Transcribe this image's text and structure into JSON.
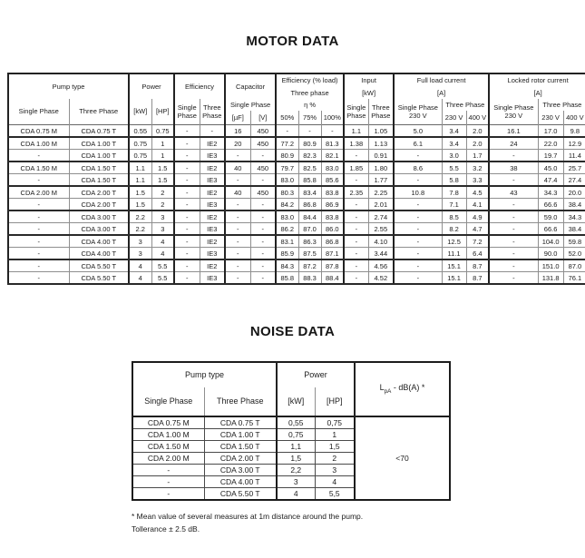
{
  "page": {
    "motor_title": "MOTOR DATA",
    "noise_title": "NOISE DATA",
    "footnote_line1": "* Mean value of several measures at 1m distance around the pump.",
    "footnote_line2": "Tollerance  ± 2.5 dB."
  },
  "motor_table": {
    "header": {
      "pump_type": "Pump type",
      "single_phase": "Single Phase",
      "three_phase": "Three Phase",
      "power": "Power",
      "kw": "[kW]",
      "hp": "[HP]",
      "efficiency": "Efficiency",
      "capacitor": "Capacitor",
      "uf": "[µF]",
      "v": "[V]",
      "eff_load": "Efficiency (% load)",
      "three_phase_lc": "Three phase",
      "eta": "η %",
      "p50": "50%",
      "p75": "75%",
      "p100": "100%",
      "input": "Input",
      "full_load": "Full load current",
      "locked_rotor": "Locked rotor current",
      "amps": "[A]",
      "single_230": "Single Phase 230 V",
      "v230": "230 V",
      "v400": "400 V"
    },
    "rows": [
      [
        "CDA 0.75 M",
        "CDA 0.75 T",
        "0.55",
        "0.75",
        "-",
        "-",
        "16",
        "450",
        "-",
        "-",
        "-",
        "1.1",
        "1.05",
        "5.0",
        "3.4",
        "2.0",
        "16.1",
        "17.0",
        "9.8"
      ],
      [
        "CDA 1.00 M",
        "CDA 1.00 T",
        "0.75",
        "1",
        "-",
        "IE2",
        "20",
        "450",
        "77.2",
        "80.9",
        "81.3",
        "1.38",
        "1.13",
        "6.1",
        "3.4",
        "2.0",
        "24",
        "22.0",
        "12.9"
      ],
      [
        "-",
        "CDA 1.00 T",
        "0.75",
        "1",
        "-",
        "IE3",
        "-",
        "-",
        "80.9",
        "82.3",
        "82.1",
        "-",
        "0.91",
        "-",
        "3.0",
        "1.7",
        "-",
        "19.7",
        "11.4"
      ],
      [
        "CDA 1.50 M",
        "CDA 1.50 T",
        "1.1",
        "1.5",
        "-",
        "IE2",
        "40",
        "450",
        "79.7",
        "82.5",
        "83.0",
        "1.85",
        "1.80",
        "8.6",
        "5.5",
        "3.2",
        "38",
        "45.0",
        "25.7"
      ],
      [
        "-",
        "CDA 1.50 T",
        "1.1",
        "1.5",
        "-",
        "IE3",
        "-",
        "-",
        "83.0",
        "85.8",
        "85.6",
        "-",
        "1.77",
        "-",
        "5.8",
        "3.3",
        "-",
        "47.4",
        "27.4"
      ],
      [
        "CDA 2.00 M",
        "CDA 2.00 T",
        "1.5",
        "2",
        "-",
        "IE2",
        "40",
        "450",
        "80.3",
        "83.4",
        "83.8",
        "2.35",
        "2.25",
        "10.8",
        "7.8",
        "4.5",
        "43",
        "34.3",
        "20.0"
      ],
      [
        "-",
        "CDA 2.00 T",
        "1.5",
        "2",
        "-",
        "IE3",
        "-",
        "-",
        "84.2",
        "86.8",
        "86.9",
        "-",
        "2.01",
        "-",
        "7.1",
        "4.1",
        "-",
        "66.6",
        "38.4"
      ],
      [
        "-",
        "CDA 3.00 T",
        "2.2",
        "3",
        "-",
        "IE2",
        "-",
        "-",
        "83.0",
        "84.4",
        "83.8",
        "-",
        "2.74",
        "-",
        "8.5",
        "4.9",
        "-",
        "59.0",
        "34.3"
      ],
      [
        "-",
        "CDA 3.00 T",
        "2.2",
        "3",
        "-",
        "IE3",
        "-",
        "-",
        "86.2",
        "87.0",
        "86.0",
        "-",
        "2.55",
        "-",
        "8.2",
        "4.7",
        "-",
        "66.6",
        "38.4"
      ],
      [
        "-",
        "CDA 4.00 T",
        "3",
        "4",
        "-",
        "IE2",
        "-",
        "-",
        "83.1",
        "86.3",
        "86.8",
        "-",
        "4.10",
        "-",
        "12.5",
        "7.2",
        "-",
        "104.0",
        "59.8"
      ],
      [
        "-",
        "CDA 4.00 T",
        "3",
        "4",
        "-",
        "IE3",
        "-",
        "-",
        "85.9",
        "87.5",
        "87.1",
        "-",
        "3.44",
        "-",
        "11.1",
        "6.4",
        "-",
        "90.0",
        "52.0"
      ],
      [
        "-",
        "CDA 5.50 T",
        "4",
        "5.5",
        "-",
        "IE2",
        "-",
        "-",
        "84.3",
        "87.2",
        "87.8",
        "-",
        "4.56",
        "-",
        "15.1",
        "8.7",
        "-",
        "151.0",
        "87.0"
      ],
      [
        "-",
        "CDA 5.50 T",
        "4",
        "5.5",
        "-",
        "IE3",
        "-",
        "-",
        "85.8",
        "88.3",
        "88.4",
        "-",
        "4.52",
        "-",
        "15.1",
        "8.7",
        "-",
        "131.8",
        "76.1"
      ]
    ]
  },
  "noise_table": {
    "header": {
      "pump_type": "Pump type",
      "single_phase": "Single Phase",
      "three_phase": "Three Phase",
      "power": "Power",
      "kw": "[kW]",
      "hp": "[HP]",
      "lpa_prefix": "L",
      "lpa_sub": "pA",
      "lpa_suffix": " - dB(A) *"
    },
    "rows": [
      [
        "CDA 0.75 M",
        "CDA 0.75 T",
        "0,55",
        "0,75"
      ],
      [
        "CDA 1.00 M",
        "CDA 1.00 T",
        "0,75",
        "1"
      ],
      [
        "CDA 1.50 M",
        "CDA 1.50 T",
        "1,1",
        "1,5"
      ],
      [
        "CDA 2.00 M",
        "CDA 2.00 T",
        "1,5",
        "2"
      ],
      [
        "-",
        "CDA 3.00 T",
        "2,2",
        "3"
      ],
      [
        "-",
        "CDA 4.00 T",
        "3",
        "4"
      ],
      [
        "-",
        "CDA 5.50 T",
        "4",
        "5,5"
      ]
    ],
    "lpa_value": "<70"
  }
}
